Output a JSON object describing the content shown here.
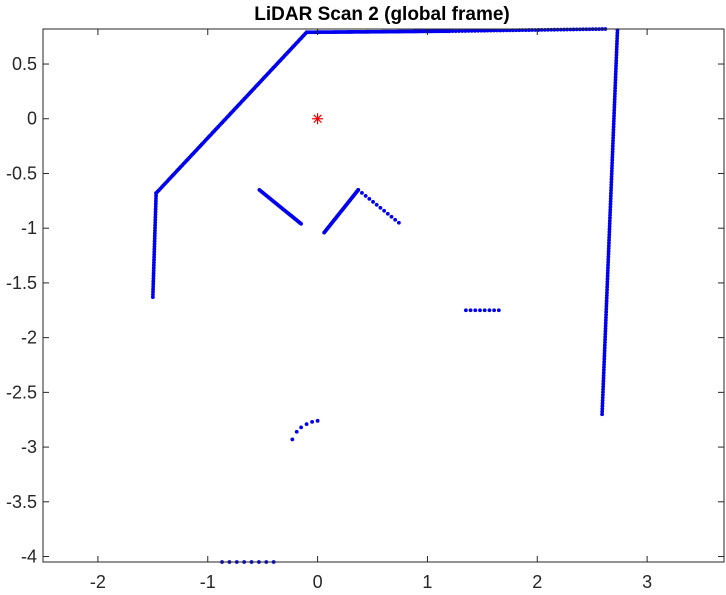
{
  "chart_data": {
    "type": "scatter",
    "title": "LiDAR Scan 2 (global frame)",
    "xlabel": "",
    "ylabel": "",
    "xlim": [
      -2.5,
      3.7
    ],
    "ylim": [
      -4.05,
      0.82
    ],
    "x_ticks": [
      -2,
      -1,
      0,
      1,
      2,
      3
    ],
    "y_ticks": [
      0.5,
      0,
      -0.5,
      -1,
      -1.5,
      -2,
      -2.5,
      -3,
      -3.5,
      -4
    ],
    "x_tick_labels": [
      "-2",
      "-1",
      "0",
      "1",
      "2",
      "3"
    ],
    "y_tick_labels": [
      "0.5",
      "0",
      "-0.5",
      "-1",
      "-1.5",
      "-2",
      "-2.5",
      "-3",
      "-3.5",
      "-4"
    ],
    "grid": false,
    "legend": "none",
    "colors": {
      "scan_points": "#0000ee",
      "origin_marker": "#ee0000",
      "axes": "#262626"
    },
    "origin_marker": {
      "x": 0,
      "y": 0,
      "symbol": "asterisk"
    },
    "segments": [
      {
        "name": "",
        "from": [
          -1.47,
          -0.68
        ],
        "to": [
          -0.1,
          0.79
        ],
        "count": 110
      },
      {
        "name": "",
        "from": [
          -0.1,
          0.79
        ],
        "to": [
          1.2,
          0.8
        ],
        "count": 90
      },
      {
        "name": "",
        "from": [
          1.2,
          0.8
        ],
        "to": [
          2.62,
          0.82
        ],
        "count": 50
      },
      {
        "name": "",
        "from": [
          2.73,
          0.81
        ],
        "to": [
          2.59,
          -2.7
        ],
        "count": 140
      },
      {
        "name": "",
        "from": [
          -1.47,
          -0.68
        ],
        "to": [
          -1.5,
          -1.63
        ],
        "count": 40
      },
      {
        "name": "",
        "from": [
          -0.53,
          -0.65
        ],
        "to": [
          -0.15,
          -0.96
        ],
        "count": 35
      },
      {
        "name": "",
        "from": [
          0.06,
          -1.04
        ],
        "to": [
          0.37,
          -0.65
        ],
        "count": 40
      },
      {
        "name": "",
        "from": [
          0.37,
          -0.65
        ],
        "to": [
          0.74,
          -0.95
        ],
        "count": 12
      },
      {
        "name": "",
        "from": [
          1.35,
          -1.75
        ],
        "to": [
          1.65,
          -1.75
        ],
        "count": 8
      },
      {
        "name": "",
        "from": [
          -0.87,
          -4.05
        ],
        "to": [
          -0.4,
          -4.05
        ],
        "count": 8
      }
    ],
    "arc_points": [
      {
        "x": -0.23,
        "y": -2.93
      },
      {
        "x": -0.19,
        "y": -2.86
      },
      {
        "x": -0.15,
        "y": -2.82
      },
      {
        "x": -0.1,
        "y": -2.79
      },
      {
        "x": -0.05,
        "y": -2.77
      },
      {
        "x": 0.0,
        "y": -2.76
      }
    ]
  }
}
